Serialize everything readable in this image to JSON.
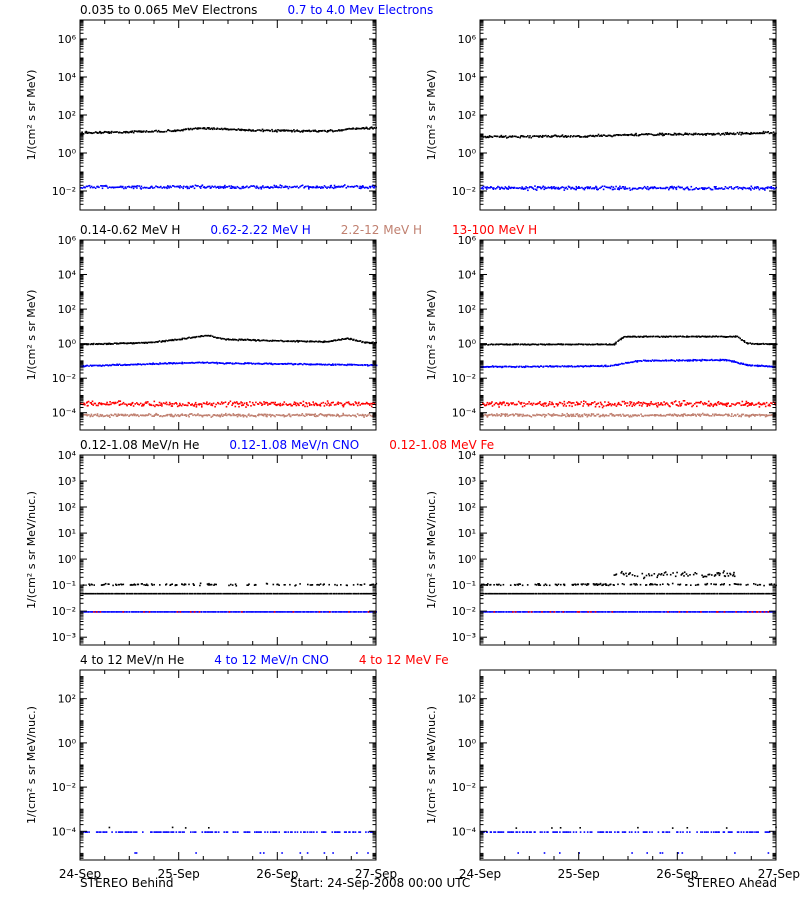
{
  "colors": {
    "black": "#000000",
    "blue": "#0000ff",
    "red": "#ff0000",
    "salmon": "#c08070"
  },
  "footer": {
    "left": "STEREO Behind",
    "center": "Start: 24-Sep-2008 00:00 UTC",
    "right": "STEREO Ahead"
  },
  "chart_data": [
    {
      "type": "scatter",
      "row": 0,
      "col": 0,
      "scale": "log",
      "ylabel": "1/(cm² s sr MeV)",
      "ylim": [
        0.001,
        10000000
      ],
      "ytick_exps": [
        -2,
        0,
        2,
        4,
        6
      ],
      "xlim": [
        0,
        3
      ],
      "xticks": [
        "24-Sep",
        "25-Sep",
        "26-Sep",
        "27-Sep"
      ],
      "title_parts": [
        {
          "text": "0.035 to 0.065 MeV Electrons",
          "color": "#000000"
        },
        {
          "text": "0.7 to 4.0 Mev Electrons",
          "color": "#0000ff"
        }
      ],
      "series": [
        {
          "color": "#000000",
          "scatter": 0.07,
          "profile": [
            [
              0,
              1.1
            ],
            [
              0.5,
              1.15
            ],
            [
              1.0,
              1.22
            ],
            [
              1.2,
              1.35
            ],
            [
              1.4,
              1.32
            ],
            [
              1.8,
              1.22
            ],
            [
              2.2,
              1.2
            ],
            [
              2.6,
              1.2
            ],
            [
              2.7,
              1.3
            ],
            [
              3.0,
              1.38
            ]
          ]
        },
        {
          "color": "#0000ff",
          "scatter": 0.12,
          "profile": [
            [
              0,
              -1.75
            ],
            [
              3.0,
              -1.75
            ]
          ]
        }
      ]
    },
    {
      "type": "scatter",
      "row": 0,
      "col": 1,
      "scale": "log",
      "ylabel": "1/(cm² s sr MeV)",
      "ylim": [
        0.001,
        10000000
      ],
      "ytick_exps": [
        -2,
        0,
        2,
        4,
        6
      ],
      "xlim": [
        0,
        3
      ],
      "xticks": [
        "24-Sep",
        "25-Sep",
        "26-Sep",
        "27-Sep"
      ],
      "title_parts": [],
      "series": [
        {
          "color": "#000000",
          "scatter": 0.08,
          "profile": [
            [
              0,
              0.9
            ],
            [
              1.0,
              0.92
            ],
            [
              1.5,
              1.0
            ],
            [
              2.5,
              1.05
            ],
            [
              3.0,
              1.12
            ]
          ]
        },
        {
          "color": "#0000ff",
          "scatter": 0.13,
          "profile": [
            [
              0,
              -1.8
            ],
            [
              3.0,
              -1.8
            ]
          ]
        }
      ]
    },
    {
      "type": "scatter",
      "row": 1,
      "col": 0,
      "scale": "log",
      "ylabel": "1/(cm² s sr MeV)",
      "ylim": [
        1e-05,
        1000000
      ],
      "ytick_exps": [
        -4,
        -2,
        0,
        2,
        4,
        6
      ],
      "xlim": [
        0,
        3
      ],
      "xticks": [
        "24-Sep",
        "25-Sep",
        "26-Sep",
        "27-Sep"
      ],
      "title_parts": [
        {
          "text": "0.14-0.62 MeV H",
          "color": "#000000"
        },
        {
          "text": "0.62-2.22 MeV H",
          "color": "#0000ff"
        },
        {
          "text": "2.2-12 MeV H",
          "color": "#c08070"
        },
        {
          "text": "13-100 MeV H",
          "color": "#ff0000"
        }
      ],
      "series": [
        {
          "color": "#000000",
          "scatter": 0.05,
          "profile": [
            [
              0,
              0.0
            ],
            [
              0.7,
              0.1
            ],
            [
              1.0,
              0.3
            ],
            [
              1.3,
              0.52
            ],
            [
              1.45,
              0.3
            ],
            [
              2.0,
              0.2
            ],
            [
              2.5,
              0.15
            ],
            [
              2.7,
              0.35
            ],
            [
              2.9,
              0.1
            ],
            [
              3.0,
              0.1
            ]
          ]
        },
        {
          "color": "#0000ff",
          "scatter": 0.05,
          "profile": [
            [
              0,
              -1.25
            ],
            [
              1.2,
              -1.05
            ],
            [
              1.6,
              -1.1
            ],
            [
              3.0,
              -1.2
            ]
          ]
        },
        {
          "color": "#c08070",
          "scatter": 0.12,
          "profile": [
            [
              0,
              -4.1
            ],
            [
              3.0,
              -4.1
            ]
          ]
        },
        {
          "color": "#ff0000",
          "scatter": 0.22,
          "profile": [
            [
              0,
              -3.45
            ],
            [
              3.0,
              -3.45
            ]
          ]
        }
      ]
    },
    {
      "type": "scatter",
      "row": 1,
      "col": 1,
      "scale": "log",
      "ylabel": "1/(cm² s sr MeV)",
      "ylim": [
        1e-05,
        1000000
      ],
      "ytick_exps": [
        -4,
        -2,
        0,
        2,
        4,
        6
      ],
      "xlim": [
        0,
        3
      ],
      "xticks": [
        "24-Sep",
        "25-Sep",
        "26-Sep",
        "27-Sep"
      ],
      "title_parts": [],
      "series": [
        {
          "color": "#000000",
          "scatter": 0.04,
          "profile": [
            [
              0,
              0.0
            ],
            [
              1.35,
              0.0
            ],
            [
              1.45,
              0.45
            ],
            [
              2.6,
              0.45
            ],
            [
              2.7,
              0.05
            ],
            [
              3.0,
              0.0
            ]
          ]
        },
        {
          "color": "#0000ff",
          "scatter": 0.05,
          "profile": [
            [
              0,
              -1.3
            ],
            [
              1.3,
              -1.25
            ],
            [
              1.6,
              -0.95
            ],
            [
              2.5,
              -0.9
            ],
            [
              2.7,
              -1.2
            ],
            [
              3.0,
              -1.3
            ]
          ]
        },
        {
          "color": "#c08070",
          "scatter": 0.12,
          "profile": [
            [
              0,
              -4.1
            ],
            [
              3.0,
              -4.1
            ]
          ]
        },
        {
          "color": "#ff0000",
          "scatter": 0.22,
          "profile": [
            [
              0,
              -3.45
            ],
            [
              3.0,
              -3.45
            ]
          ]
        }
      ]
    },
    {
      "type": "scatter",
      "row": 2,
      "col": 0,
      "scale": "log",
      "ylabel": "1/(cm² s sr MeV/nuc.)",
      "ylim": [
        0.0005,
        10000
      ],
      "ytick_exps": [
        -3,
        -2,
        -1,
        0,
        1,
        2,
        3,
        4
      ],
      "xlim": [
        0,
        3
      ],
      "xticks": [
        "24-Sep",
        "25-Sep",
        "26-Sep",
        "27-Sep"
      ],
      "title_parts": [
        {
          "text": "0.12-1.08 MeV/n He",
          "color": "#000000"
        },
        {
          "text": "0.12-1.08 MeV/n CNO",
          "color": "#0000ff"
        },
        {
          "text": "0.12-1.08 MeV Fe",
          "color": "#ff0000"
        }
      ],
      "series": [
        {
          "color": "#000000",
          "scatter": 0.0,
          "profile": [
            [
              0,
              -1.3
            ],
            [
              3.0,
              -1.3
            ]
          ]
        },
        {
          "color": "#000000",
          "scatter": 0.06,
          "sparse": 0.35,
          "profile": [
            [
              0,
              -0.95
            ],
            [
              3.0,
              -0.95
            ]
          ]
        },
        {
          "color": "#0000ff",
          "scatter": 0.0,
          "profile": [
            [
              0,
              -2.0
            ],
            [
              3.0,
              -2.0
            ]
          ]
        },
        {
          "color": "#ff0000",
          "scatter": 0.0,
          "sparse": 0.12,
          "profile": [
            [
              0,
              -2.0
            ],
            [
              3.0,
              -2.0
            ]
          ]
        }
      ]
    },
    {
      "type": "scatter",
      "row": 2,
      "col": 1,
      "scale": "log",
      "ylabel": "1/(cm² s sr MeV/nuc.)",
      "ylim": [
        0.0005,
        10000
      ],
      "ytick_exps": [
        -3,
        -2,
        -1,
        0,
        1,
        2,
        3,
        4
      ],
      "xlim": [
        0,
        3
      ],
      "xticks": [
        "24-Sep",
        "25-Sep",
        "26-Sep",
        "27-Sep"
      ],
      "title_parts": [],
      "series": [
        {
          "color": "#000000",
          "scatter": 0.0,
          "profile": [
            [
              0,
              -1.3
            ],
            [
              3.0,
              -1.3
            ]
          ]
        },
        {
          "color": "#000000",
          "scatter": 0.05,
          "sparse": 0.5,
          "profile": [
            [
              0,
              -0.95
            ],
            [
              3.0,
              -0.95
            ]
          ]
        },
        {
          "color": "#000000",
          "scatter": 0.18,
          "sparse": 0.6,
          "xrange": [
            1.35,
            2.6
          ],
          "profile": [
            [
              1.35,
              -0.55
            ],
            [
              2.6,
              -0.6
            ]
          ]
        },
        {
          "color": "#0000ff",
          "scatter": 0.0,
          "profile": [
            [
              0,
              -2.0
            ],
            [
              3.0,
              -2.0
            ]
          ]
        },
        {
          "color": "#ff0000",
          "scatter": 0.0,
          "sparse": 0.1,
          "profile": [
            [
              0,
              -2.0
            ],
            [
              3.0,
              -2.0
            ]
          ]
        }
      ]
    },
    {
      "type": "scatter",
      "row": 3,
      "col": 0,
      "scale": "log",
      "ylabel": "1/(cm² s sr MeV/nuc.)",
      "ylim": [
        5e-06,
        2000
      ],
      "ytick_exps": [
        -4,
        -2,
        0,
        2
      ],
      "xlim": [
        0,
        3
      ],
      "xticks": [
        "24-Sep",
        "25-Sep",
        "26-Sep",
        "27-Sep"
      ],
      "title_parts": [
        {
          "text": "4 to 12 MeV/n He",
          "color": "#000000"
        },
        {
          "text": "4 to 12 MeV/n CNO",
          "color": "#0000ff"
        },
        {
          "text": "4 to 12 MeV Fe",
          "color": "#ff0000"
        }
      ],
      "series": [
        {
          "color": "#0000ff",
          "scatter": 0.0,
          "sparse": 0.55,
          "profile": [
            [
              0,
              -4.0
            ],
            [
              3.0,
              -4.0
            ]
          ]
        },
        {
          "color": "#000000",
          "scatter": 0.03,
          "sparse": 0.03,
          "profile": [
            [
              0,
              -3.8
            ],
            [
              3.0,
              -3.8
            ]
          ]
        },
        {
          "color": "#0000ff",
          "scatter": 0.0,
          "sparse": 0.04,
          "profile": [
            [
              0,
              -4.95
            ],
            [
              3.0,
              -4.95
            ]
          ]
        }
      ]
    },
    {
      "type": "scatter",
      "row": 3,
      "col": 1,
      "scale": "log",
      "ylabel": "1/(cm² s sr MeV/nuc.)",
      "ylim": [
        5e-06,
        2000
      ],
      "ytick_exps": [
        -4,
        -2,
        0,
        2
      ],
      "xlim": [
        0,
        3
      ],
      "xticks": [
        "24-Sep",
        "25-Sep",
        "26-Sep",
        "27-Sep"
      ],
      "title_parts": [],
      "series": [
        {
          "color": "#0000ff",
          "scatter": 0.0,
          "sparse": 0.55,
          "profile": [
            [
              0,
              -4.0
            ],
            [
              3.0,
              -4.0
            ]
          ]
        },
        {
          "color": "#000000",
          "scatter": 0.03,
          "sparse": 0.03,
          "profile": [
            [
              0,
              -3.8
            ],
            [
              3.0,
              -3.8
            ]
          ]
        },
        {
          "color": "#0000ff",
          "scatter": 0.0,
          "sparse": 0.04,
          "profile": [
            [
              0,
              -4.95
            ],
            [
              3.0,
              -4.95
            ]
          ]
        }
      ]
    }
  ]
}
